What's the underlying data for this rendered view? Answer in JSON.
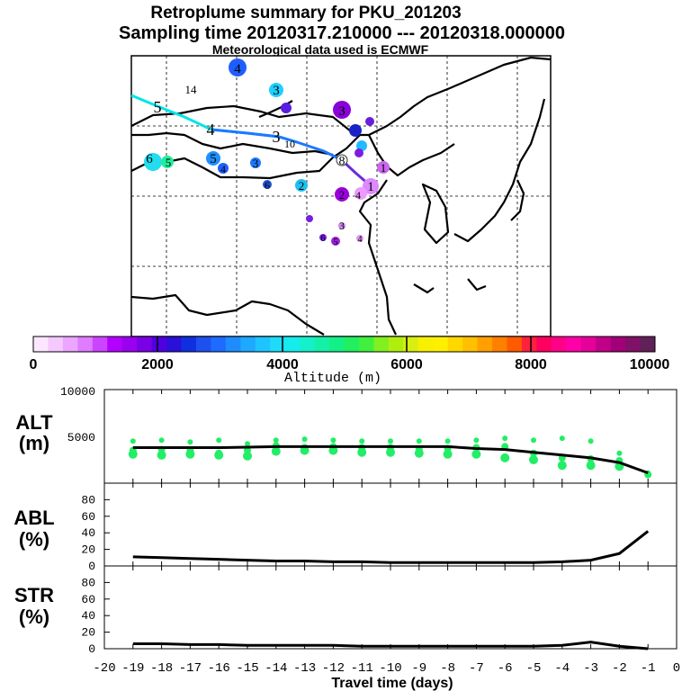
{
  "chart_data": {
    "type": "line",
    "title": "Retroplume summary for PKU_201203",
    "subtitle": "Sampling time   20120317.210000 --- 20120318.000000",
    "note": "Meteorological data used is ECMWF",
    "colorbar": {
      "label": "Altitude (m)",
      "ticks": [
        "0",
        "2000",
        "4000",
        "6000",
        "8000",
        "10000"
      ],
      "range": [
        0,
        10000
      ]
    },
    "map_track": {
      "labels": [
        "1",
        "2",
        "3",
        "4",
        "5",
        "6",
        "8",
        "10",
        "14"
      ]
    },
    "alt_panel": {
      "ylabel": "ALT",
      "yunit": "(m)",
      "yticks": [
        "5000",
        "10000"
      ],
      "ylim": [
        0,
        10000
      ],
      "x": [
        -19,
        -18,
        -17,
        -16,
        -15,
        -14,
        -13,
        -12,
        -11,
        -10,
        -9,
        -8,
        -7,
        -6,
        -5,
        -4,
        -3,
        -2,
        -1
      ],
      "values": [
        3800,
        3800,
        3800,
        3800,
        3850,
        3900,
        3900,
        3900,
        3900,
        3900,
        3900,
        3900,
        3700,
        3600,
        3300,
        3000,
        2700,
        2200,
        1100
      ],
      "particle_points": [
        {
          "x": -19,
          "y": 4500
        },
        {
          "x": -19,
          "y": 3500
        },
        {
          "x": -19,
          "y": 3100
        },
        {
          "x": -18,
          "y": 4600
        },
        {
          "x": -18,
          "y": 3600
        },
        {
          "x": -18,
          "y": 3000
        },
        {
          "x": -17,
          "y": 4400
        },
        {
          "x": -17,
          "y": 3500
        },
        {
          "x": -17,
          "y": 3100
        },
        {
          "x": -16,
          "y": 4600
        },
        {
          "x": -16,
          "y": 3200
        },
        {
          "x": -16,
          "y": 3000
        },
        {
          "x": -15,
          "y": 4200
        },
        {
          "x": -15,
          "y": 3500
        },
        {
          "x": -15,
          "y": 2900
        },
        {
          "x": -14,
          "y": 4600
        },
        {
          "x": -14,
          "y": 4000
        },
        {
          "x": -14,
          "y": 3400
        },
        {
          "x": -13,
          "y": 4700
        },
        {
          "x": -13,
          "y": 3800
        },
        {
          "x": -13,
          "y": 3500
        },
        {
          "x": -12,
          "y": 4600
        },
        {
          "x": -12,
          "y": 3900
        },
        {
          "x": -12,
          "y": 3500
        },
        {
          "x": -11,
          "y": 4500
        },
        {
          "x": -11,
          "y": 3800
        },
        {
          "x": -11,
          "y": 3300
        },
        {
          "x": -10,
          "y": 4500
        },
        {
          "x": -10,
          "y": 3800
        },
        {
          "x": -10,
          "y": 3300
        },
        {
          "x": -9,
          "y": 4500
        },
        {
          "x": -9,
          "y": 3600
        },
        {
          "x": -9,
          "y": 3200
        },
        {
          "x": -8,
          "y": 4500
        },
        {
          "x": -8,
          "y": 3700
        },
        {
          "x": -8,
          "y": 3100
        },
        {
          "x": -7,
          "y": 4600
        },
        {
          "x": -7,
          "y": 3800
        },
        {
          "x": -7,
          "y": 3100
        },
        {
          "x": -6,
          "y": 4800
        },
        {
          "x": -6,
          "y": 3900
        },
        {
          "x": -6,
          "y": 2700
        },
        {
          "x": -5,
          "y": 4600
        },
        {
          "x": -5,
          "y": 3200
        },
        {
          "x": -5,
          "y": 2500
        },
        {
          "x": -4,
          "y": 4800
        },
        {
          "x": -4,
          "y": 2700
        },
        {
          "x": -4,
          "y": 1900
        },
        {
          "x": -3,
          "y": 4500
        },
        {
          "x": -3,
          "y": 2600
        },
        {
          "x": -3,
          "y": 1900
        },
        {
          "x": -2,
          "y": 3200
        },
        {
          "x": -2,
          "y": 2400
        },
        {
          "x": -2,
          "y": 1800
        },
        {
          "x": -1,
          "y": 1100
        },
        {
          "x": -1,
          "y": 900
        }
      ]
    },
    "abl_panel": {
      "ylabel": "ABL",
      "yunit": "(%)",
      "yticks": [
        "0",
        "20",
        "40",
        "60",
        "80"
      ],
      "ylim": [
        0,
        100
      ],
      "x": [
        -19,
        -18,
        -17,
        -16,
        -15,
        -14,
        -13,
        -12,
        -11,
        -10,
        -9,
        -8,
        -7,
        -6,
        -5,
        -4,
        -3,
        -2,
        -1
      ],
      "values": [
        11,
        10,
        9,
        8,
        7,
        6,
        6,
        5,
        5,
        4,
        4,
        4,
        4,
        4,
        4,
        5,
        7,
        15,
        42
      ]
    },
    "str_panel": {
      "ylabel": "STR",
      "yunit": "(%)",
      "yticks": [
        "0",
        "20",
        "40",
        "60",
        "80"
      ],
      "ylim": [
        0,
        100
      ],
      "x": [
        -19,
        -18,
        -17,
        -16,
        -15,
        -14,
        -13,
        -12,
        -11,
        -10,
        -9,
        -8,
        -7,
        -6,
        -5,
        -4,
        -3,
        -2,
        -1
      ],
      "values": [
        6,
        6,
        5,
        5,
        4,
        4,
        4,
        4,
        3,
        3,
        3,
        3,
        3,
        3,
        3,
        4,
        8,
        3,
        0
      ]
    },
    "xaxis": {
      "label": "Travel time (days)",
      "ticks": [
        "-20",
        "-19",
        "-18",
        "-17",
        "-16",
        "-15",
        "-14",
        "-13",
        "-12",
        "-11",
        "-10",
        "-9",
        "-8",
        "-7",
        "-6",
        "-5",
        "-4",
        "-3",
        "-2",
        "-1",
        "0"
      ],
      "xlim": [
        -20,
        0
      ]
    }
  },
  "colors": {
    "track_cyan": "#00e5e5",
    "track_blue": "#1e78ff",
    "track_purple": "#8a2be2",
    "point_green": "#22ee66",
    "line": "#000000"
  }
}
